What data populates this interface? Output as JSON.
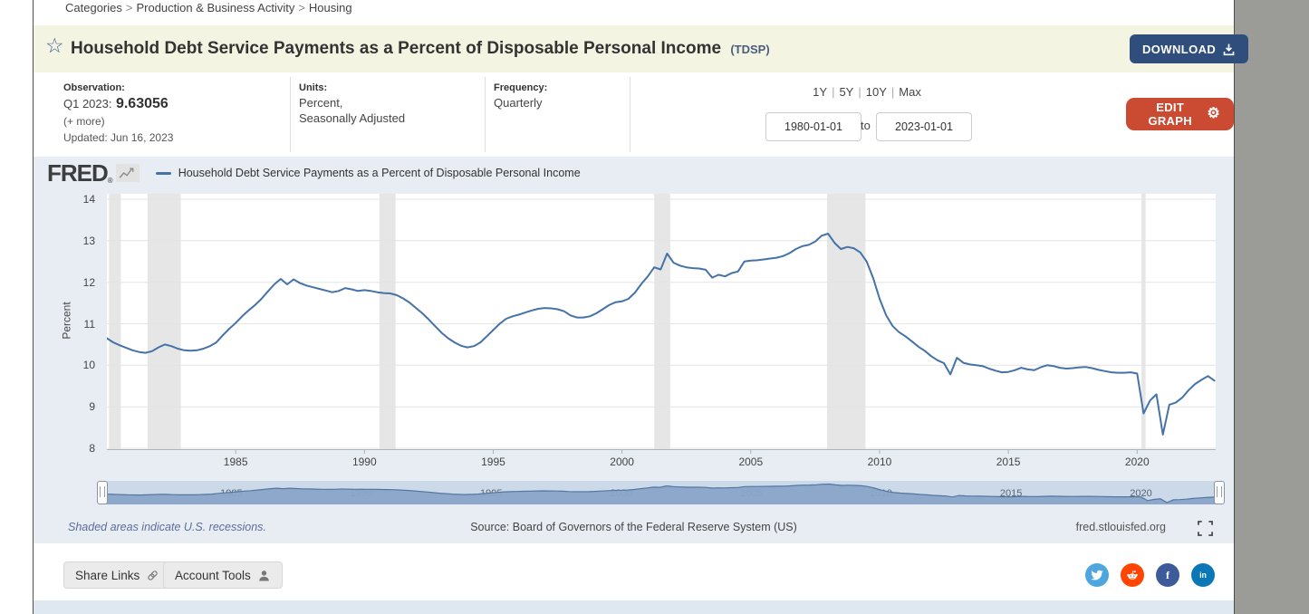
{
  "breadcrumb": {
    "items": [
      "Categories",
      "Production & Business Activity",
      "Housing"
    ],
    "separator": ">"
  },
  "title": {
    "text": "Household Debt Service Payments as a Percent of Disposable Personal Income",
    "series_id": "(TDSP)",
    "star_icon": "☆",
    "download_label": "DOWNLOAD"
  },
  "meta": {
    "observation": {
      "label": "Observation:",
      "period": "Q1 2023:",
      "value": "9.63056",
      "more": "(+ more)",
      "updated": "Updated: Jun 16, 2023"
    },
    "units": {
      "label": "Units:",
      "line1": "Percent,",
      "line2": "Seasonally Adjusted"
    },
    "frequency": {
      "label": "Frequency:",
      "value": "Quarterly"
    },
    "ranges": {
      "options": [
        "1Y",
        "5Y",
        "10Y",
        "Max"
      ],
      "separator": "|",
      "from_value": "1980-01-01",
      "to_label": "to",
      "to_value": "2023-01-01"
    },
    "edit_graph_label": "EDIT GRAPH"
  },
  "graph": {
    "logo_text": "FRED",
    "logo_mark": "®",
    "legend": "Household Debt Service Payments as a Percent of Disposable Personal Income",
    "footnote": "Shaded areas indicate U.S. recessions.",
    "source": "Source: Board of Governors of the Federal Reserve System (US)",
    "site": "fred.stlouisfed.org"
  },
  "chart_data": {
    "type": "line",
    "title": "Household Debt Service Payments as a Percent of Disposable Personal Income",
    "ylabel": "Percent",
    "xlabel": "",
    "x_start": 1980.0,
    "x_step": 0.25,
    "xlim": [
      1980.0,
      2023.05
    ],
    "ylim": [
      8,
      14
    ],
    "yticks": [
      8,
      9,
      10,
      11,
      12,
      13,
      14
    ],
    "xticks": [
      1985,
      1990,
      1995,
      2000,
      2005,
      2010,
      2015,
      2020
    ],
    "grid": true,
    "legend_position": "top",
    "line_color": "#4572a7",
    "recession_color": "#e6e6e6",
    "recessions": [
      [
        1980.08,
        1980.54
      ],
      [
        1981.58,
        1982.87
      ],
      [
        1990.58,
        1991.21
      ],
      [
        2001.25,
        2001.87
      ],
      [
        2007.96,
        2009.45
      ],
      [
        2020.17,
        2020.33
      ]
    ],
    "values": [
      10.65,
      10.55,
      10.48,
      10.42,
      10.36,
      10.32,
      10.3,
      10.34,
      10.43,
      10.5,
      10.46,
      10.4,
      10.36,
      10.35,
      10.36,
      10.4,
      10.46,
      10.55,
      10.72,
      10.88,
      11.02,
      11.18,
      11.32,
      11.45,
      11.6,
      11.78,
      11.95,
      12.08,
      11.95,
      12.07,
      11.98,
      11.92,
      11.88,
      11.84,
      11.8,
      11.76,
      11.79,
      11.86,
      11.83,
      11.79,
      11.81,
      11.79,
      11.76,
      11.74,
      11.73,
      11.69,
      11.61,
      11.51,
      11.38,
      11.25,
      11.1,
      10.94,
      10.78,
      10.65,
      10.55,
      10.47,
      10.43,
      10.46,
      10.55,
      10.7,
      10.85,
      11.0,
      11.12,
      11.18,
      11.22,
      11.27,
      11.32,
      11.36,
      11.38,
      11.37,
      11.35,
      11.3,
      11.2,
      11.15,
      11.15,
      11.18,
      11.25,
      11.35,
      11.45,
      11.52,
      11.54,
      11.6,
      11.75,
      11.96,
      12.14,
      12.36,
      12.31,
      12.69,
      12.47,
      12.4,
      12.36,
      12.34,
      12.33,
      12.3,
      12.11,
      12.18,
      12.14,
      12.22,
      12.26,
      12.5,
      12.52,
      12.53,
      12.55,
      12.57,
      12.59,
      12.63,
      12.7,
      12.8,
      12.87,
      12.9,
      12.98,
      13.12,
      13.17,
      12.95,
      12.8,
      12.85,
      12.82,
      12.72,
      12.5,
      12.1,
      11.6,
      11.21,
      10.95,
      10.8,
      10.7,
      10.58,
      10.45,
      10.35,
      10.22,
      10.12,
      10.05,
      9.78,
      10.18,
      10.06,
      10.02,
      10.0,
      9.98,
      9.92,
      9.87,
      9.83,
      9.84,
      9.88,
      9.94,
      9.9,
      9.88,
      9.95,
      10.0,
      9.98,
      9.94,
      9.92,
      9.93,
      9.95,
      9.96,
      9.93,
      9.89,
      9.86,
      9.83,
      9.82,
      9.82,
      9.83,
      9.8,
      8.84,
      9.15,
      9.3,
      8.33,
      9.05,
      9.1,
      9.22,
      9.4,
      9.55,
      9.65,
      9.74,
      9.63056
    ]
  },
  "share": {
    "share_links": "Share Links",
    "account_tools": "Account Tools"
  },
  "social": [
    {
      "name": "twitter",
      "color": "#4da7de",
      "glyph": ""
    },
    {
      "name": "reddit",
      "color": "#ff4500",
      "glyph": ""
    },
    {
      "name": "facebook",
      "color": "#3d5b99",
      "glyph": "f"
    },
    {
      "name": "linkedin",
      "color": "#0a77b6",
      "glyph": "in"
    }
  ],
  "colors": {
    "title_bar_bg": "#f4f4e3",
    "download_btn": "#2f4e7c",
    "edit_btn": "#cb4b32",
    "graph_panel_bg": "#e7edf3",
    "line": "#4572a7",
    "recession": "#e6e6e6",
    "slider_fill": "#8aa5ca"
  }
}
